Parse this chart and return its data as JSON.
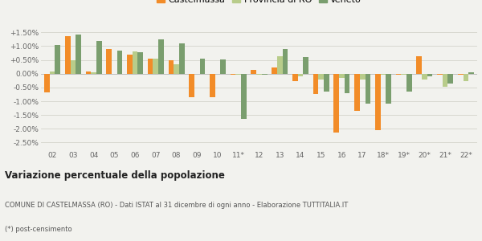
{
  "years": [
    "02",
    "03",
    "04",
    "05",
    "06",
    "07",
    "08",
    "09",
    "10",
    "11*",
    "12",
    "13",
    "14",
    "15",
    "16",
    "17",
    "18*",
    "19*",
    "20*",
    "21*",
    "22*"
  ],
  "castelmassa": [
    -0.68,
    1.35,
    0.07,
    0.9,
    0.68,
    0.55,
    0.48,
    -0.85,
    -0.85,
    -0.03,
    0.13,
    0.22,
    -0.28,
    -0.75,
    -2.15,
    -1.35,
    -2.05,
    -0.03,
    0.62,
    -0.03,
    -0.05
  ],
  "provincia_ro": [
    0.08,
    0.5,
    0.05,
    0.0,
    0.8,
    0.55,
    0.35,
    0.0,
    -0.02,
    -0.05,
    -0.05,
    0.62,
    -0.1,
    -0.2,
    -0.15,
    -0.2,
    -0.05,
    -0.05,
    -0.2,
    -0.48,
    -0.28
  ],
  "veneto": [
    1.05,
    1.42,
    1.2,
    0.85,
    0.78,
    1.25,
    1.1,
    0.55,
    0.52,
    -1.65,
    -0.03,
    0.9,
    0.6,
    -0.65,
    -0.7,
    -1.1,
    -1.1,
    -0.65,
    -0.1,
    -0.35,
    0.05
  ],
  "color_castelmassa": "#f28c28",
  "color_provincia": "#b8cc8a",
  "color_veneto": "#7a9e6e",
  "background_color": "#f2f2ee",
  "grid_color": "#d8d8d0",
  "title_bold": "Variazione percentuale della popolazione",
  "subtitle": "COMUNE DI CASTELMASSA (RO) - Dati ISTAT al 31 dicembre di ogni anno - Elaborazione TUTTITALIA.IT",
  "footnote": "(*) post-censimento",
  "ylim": [
    -2.75,
    1.8
  ],
  "yticks": [
    -2.5,
    -2.0,
    -1.5,
    -1.0,
    -0.5,
    0.0,
    0.5,
    1.0,
    1.5
  ],
  "ytick_labels": [
    "-2.50%",
    "-2.00%",
    "-1.50%",
    "-1.00%",
    "-0.50%",
    "0.00%",
    "+0.50%",
    "+1.00%",
    "+1.50%"
  ]
}
